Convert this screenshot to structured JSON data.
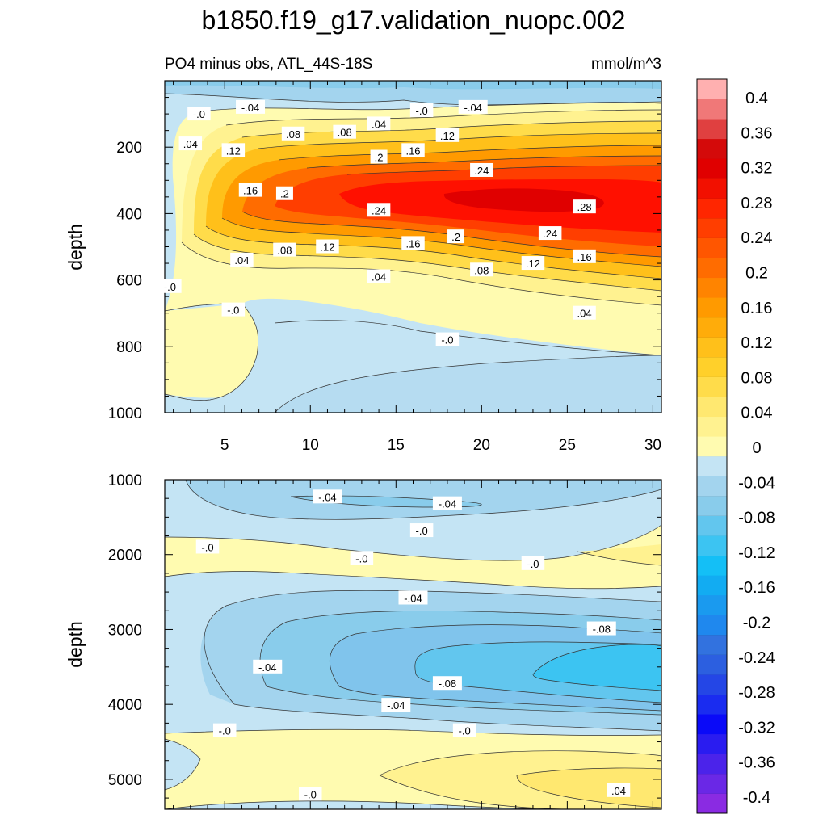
{
  "chart_data": {
    "type": "contour",
    "title": "b1850.f19_g17.validation_nuopc.002",
    "subtitle_left": "PO4 minus obs, ATL_44S-18S",
    "units": "mmol/m^3",
    "x_range": [
      1.5,
      30.5
    ],
    "x_ticks": [
      5,
      10,
      15,
      20,
      25,
      30
    ],
    "x_tick_labels": [
      "5",
      "10",
      "15",
      "20",
      "25",
      "30"
    ],
    "colorbar": {
      "levels": [
        -0.4,
        -0.36,
        -0.32,
        -0.28,
        -0.24,
        -0.2,
        -0.16,
        -0.12,
        -0.08,
        -0.04,
        0,
        0.04,
        0.08,
        0.12,
        0.16,
        0.2,
        0.24,
        0.28,
        0.32,
        0.36,
        0.4
      ],
      "labels": [
        "-0.4",
        "-0.36",
        "-0.32",
        "-0.28",
        "-0.24",
        "-0.2",
        "-0.16",
        "-0.12",
        "-0.08",
        "-0.04",
        "0",
        "0.04",
        "0.08",
        "0.12",
        "0.16",
        "0.2",
        "0.24",
        "0.28",
        "0.32",
        "0.36",
        "0.4"
      ],
      "colors": [
        "#8a2be2",
        "#6a28e6",
        "#4b23ea",
        "#2a1cf0",
        "#0a0af8",
        "#1a2cf0",
        "#2446e6",
        "#2c5fe0",
        "#3272df",
        "#1f88ee",
        "#1a9aef",
        "#12acf2",
        "#14bff6",
        "#3cc4f2",
        "#62c6ee",
        "#89cceb",
        "#a3d4ee",
        "#c4e4f4",
        "#fffbb0",
        "#fff290",
        "#ffe870",
        "#ffdc4a",
        "#ffd02a",
        "#ffc01a",
        "#ffac0a",
        "#ff9a00",
        "#ff8400",
        "#ff6c00",
        "#ff5600",
        "#ff3e00",
        "#ff2600",
        "#f21000",
        "#e00000",
        "#d40a0a",
        "#e04040",
        "#f07878",
        "#ffb0b0"
      ]
    },
    "panels": [
      {
        "name": "upper",
        "ylabel": "depth",
        "y_range": [
          0,
          1000
        ],
        "y_ticks": [
          200,
          400,
          600,
          800,
          1000
        ],
        "y_tick_labels": [
          "200",
          "400",
          "600",
          "800",
          "1000"
        ],
        "contour_labels": [
          {
            "x": 6.5,
            "y": 80,
            "text": "-.04"
          },
          {
            "x": 3.5,
            "y": 100,
            "text": "-.0"
          },
          {
            "x": 16.5,
            "y": 90,
            "text": "-.0"
          },
          {
            "x": 19.5,
            "y": 80,
            "text": "-.04"
          },
          {
            "x": 14,
            "y": 130,
            "text": ".04"
          },
          {
            "x": 3,
            "y": 190,
            "text": ".04"
          },
          {
            "x": 9,
            "y": 160,
            "text": ".08"
          },
          {
            "x": 12,
            "y": 155,
            "text": ".08"
          },
          {
            "x": 18,
            "y": 165,
            "text": ".12"
          },
          {
            "x": 5.5,
            "y": 210,
            "text": ".12"
          },
          {
            "x": 14,
            "y": 230,
            "text": ".2"
          },
          {
            "x": 16,
            "y": 210,
            "text": ".16"
          },
          {
            "x": 20,
            "y": 270,
            "text": ".24"
          },
          {
            "x": 6.5,
            "y": 330,
            "text": ".16"
          },
          {
            "x": 8.5,
            "y": 340,
            "text": ".2"
          },
          {
            "x": 14,
            "y": 390,
            "text": ".24"
          },
          {
            "x": 26,
            "y": 380,
            "text": ".28"
          },
          {
            "x": 24,
            "y": 460,
            "text": ".24"
          },
          {
            "x": 18.5,
            "y": 470,
            "text": ".2"
          },
          {
            "x": 16,
            "y": 490,
            "text": ".16"
          },
          {
            "x": 11,
            "y": 500,
            "text": ".12"
          },
          {
            "x": 8.5,
            "y": 510,
            "text": ".08"
          },
          {
            "x": 6,
            "y": 540,
            "text": ".04"
          },
          {
            "x": 26,
            "y": 530,
            "text": ".16"
          },
          {
            "x": 23,
            "y": 550,
            "text": ".12"
          },
          {
            "x": 20,
            "y": 570,
            "text": ".08"
          },
          {
            "x": 14,
            "y": 590,
            "text": ".04"
          },
          {
            "x": 1.8,
            "y": 620,
            "text": "-.0"
          },
          {
            "x": 5.5,
            "y": 690,
            "text": "-.0"
          },
          {
            "x": 26,
            "y": 700,
            "text": ".04"
          },
          {
            "x": 18,
            "y": 780,
            "text": "-.0"
          }
        ]
      },
      {
        "name": "lower",
        "ylabel": "depth",
        "y_range": [
          1000,
          5400
        ],
        "y_ticks": [
          1000,
          2000,
          3000,
          4000,
          5000
        ],
        "y_tick_labels": [
          "1000",
          "2000",
          "3000",
          "4000",
          "5000"
        ],
        "contour_labels": [
          {
            "x": 11,
            "y": 1230,
            "text": "-.04"
          },
          {
            "x": 18,
            "y": 1320,
            "text": "-.04"
          },
          {
            "x": 16.5,
            "y": 1680,
            "text": "-.0"
          },
          {
            "x": 4,
            "y": 1900,
            "text": "-.0"
          },
          {
            "x": 13,
            "y": 2050,
            "text": "-.0"
          },
          {
            "x": 23,
            "y": 2120,
            "text": "-.0"
          },
          {
            "x": 16,
            "y": 2580,
            "text": "-.04"
          },
          {
            "x": 27,
            "y": 2990,
            "text": "-.08"
          },
          {
            "x": 7.5,
            "y": 3500,
            "text": "-.04"
          },
          {
            "x": 18,
            "y": 3720,
            "text": "-.08"
          },
          {
            "x": 15,
            "y": 4010,
            "text": "-.04"
          },
          {
            "x": 5,
            "y": 4350,
            "text": "-.0"
          },
          {
            "x": 19,
            "y": 4350,
            "text": "-.0"
          },
          {
            "x": 10,
            "y": 5200,
            "text": "-.0"
          },
          {
            "x": 28,
            "y": 5150,
            "text": ".04"
          }
        ]
      }
    ]
  }
}
